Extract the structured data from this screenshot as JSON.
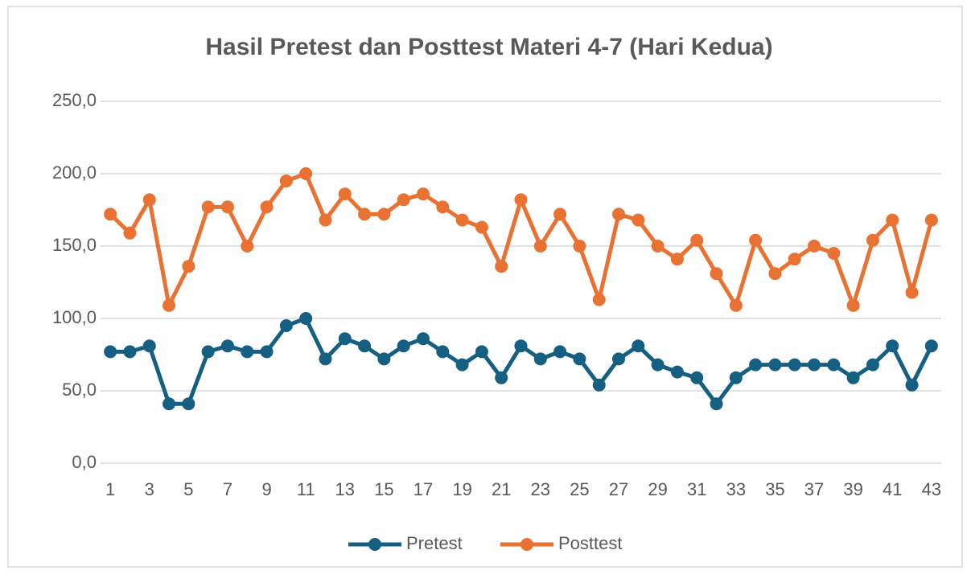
{
  "chart_data": {
    "type": "line",
    "title": "Hasil Pretest dan Posttest Materi 4-7 (Hari Kedua)",
    "categories": [
      "1",
      null,
      "3",
      null,
      "5",
      null,
      "7",
      null,
      "9",
      null,
      "11",
      null,
      "13",
      null,
      "15",
      null,
      "17",
      null,
      "19",
      null,
      "21",
      null,
      "23",
      null,
      "25",
      null,
      "27",
      null,
      "29",
      null,
      "31",
      null,
      "33",
      null,
      "35",
      null,
      "37",
      null,
      "39",
      null,
      "41",
      null,
      "43"
    ],
    "series": [
      {
        "name": "Pretest",
        "color": "#156082",
        "values": [
          77,
          77,
          81,
          41,
          41,
          77,
          81,
          77,
          77,
          95,
          100,
          72,
          86,
          81,
          72,
          81,
          86,
          77,
          68,
          77,
          59,
          81,
          72,
          77,
          72,
          54,
          72,
          81,
          68,
          63,
          59,
          41,
          59,
          68,
          68,
          68,
          68,
          68,
          59,
          68,
          81,
          54,
          81
        ]
      },
      {
        "name": "Posttest",
        "color": "#e97132",
        "values": [
          172,
          159,
          182,
          109,
          136,
          177,
          177,
          150,
          177,
          195,
          200,
          168,
          186,
          172,
          172,
          182,
          186,
          177,
          168,
          163,
          136,
          182,
          150,
          172,
          150,
          113,
          172,
          168,
          150,
          141,
          154,
          131,
          109,
          154,
          131,
          141,
          150,
          145,
          109,
          154,
          168,
          118,
          168
        ]
      }
    ],
    "ylim": [
      0,
      250
    ],
    "yticks": [
      {
        "value": 0,
        "label": "0,0"
      },
      {
        "value": 50,
        "label": "50,0"
      },
      {
        "value": 100,
        "label": "100,0"
      },
      {
        "value": 150,
        "label": "150,0"
      },
      {
        "value": 200,
        "label": "200,0"
      },
      {
        "value": 250,
        "label": "250,0"
      }
    ],
    "grid": true,
    "legend": "bottom"
  }
}
